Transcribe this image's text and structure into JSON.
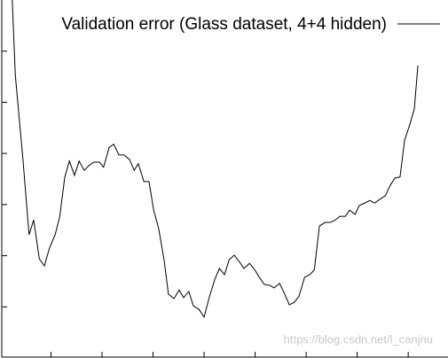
{
  "chart_data": {
    "type": "line",
    "series": [
      {
        "name": "Validation error (Glass dataset, 4+4 hidden)",
        "color": "#000000",
        "x": [
          2.4,
          3.0,
          4.5,
          5.7,
          6.6,
          7.7,
          8.7,
          9.7,
          10.8,
          11.7,
          12.7,
          13.6,
          14.6,
          15.5,
          16.5,
          17.4,
          18.4,
          19.5,
          20.3,
          21.4,
          22.3,
          23.3,
          24.3,
          25.4,
          26.3,
          27.1,
          28.2,
          29.2,
          30.1,
          31.1,
          32.2,
          33.0,
          34.1,
          35.1,
          36.0,
          37.0,
          37.9,
          39.0,
          40.0,
          41.0,
          42.1,
          43.0,
          44.0,
          44.9,
          45.9,
          47.0,
          47.8,
          48.9,
          49.9,
          50.8,
          51.8,
          52.9,
          53.7,
          54.8,
          55.7,
          56.7,
          57.7,
          58.6,
          59.7,
          60.7,
          61.6,
          62.6,
          63.7,
          64.7,
          65.6,
          66.6,
          67.7,
          68.5,
          69.6,
          70.4,
          71.5,
          72.5,
          73.4,
          74.4,
          75.5,
          76.5,
          77.4,
          78.4,
          79.3,
          80.3,
          81.2,
          81.9
        ],
        "values": [
          70.0,
          55.3,
          38.8,
          24.1,
          27.0,
          19.4,
          18.0,
          21.5,
          24.1,
          27.6,
          35.4,
          38.5,
          35.7,
          38.5,
          36.7,
          37.6,
          38.3,
          38.3,
          37.3,
          41.2,
          41.8,
          39.7,
          39.7,
          38.8,
          36.7,
          38.0,
          34.5,
          34.5,
          29.0,
          25.3,
          18.9,
          12.5,
          11.6,
          13.3,
          11.8,
          13.0,
          10.2,
          9.5,
          8.0,
          11.8,
          15.4,
          17.5,
          16.3,
          19.2,
          20.1,
          18.7,
          17.5,
          18.5,
          17.3,
          15.8,
          14.4,
          14.2,
          13.7,
          14.6,
          12.7,
          10.4,
          10.9,
          12.1,
          15.8,
          16.3,
          17.2,
          25.8,
          26.5,
          26.5,
          26.9,
          27.7,
          27.7,
          28.9,
          28.1,
          29.8,
          30.3,
          30.8,
          30.3,
          31.0,
          31.7,
          33.8,
          35.2,
          35.4,
          42.6,
          45.6,
          48.7,
          57.2
        ]
      }
    ],
    "xlim": [
      0,
      87.8
    ],
    "xticks": [
      10,
      20,
      30,
      40,
      50,
      60,
      70,
      80
    ],
    "ylim": [
      0,
      70
    ],
    "yticks": [
      10,
      20,
      30,
      40,
      50,
      60
    ],
    "legend": "top-right",
    "watermark": "https://blog.csdn.net/l_canjnu"
  }
}
